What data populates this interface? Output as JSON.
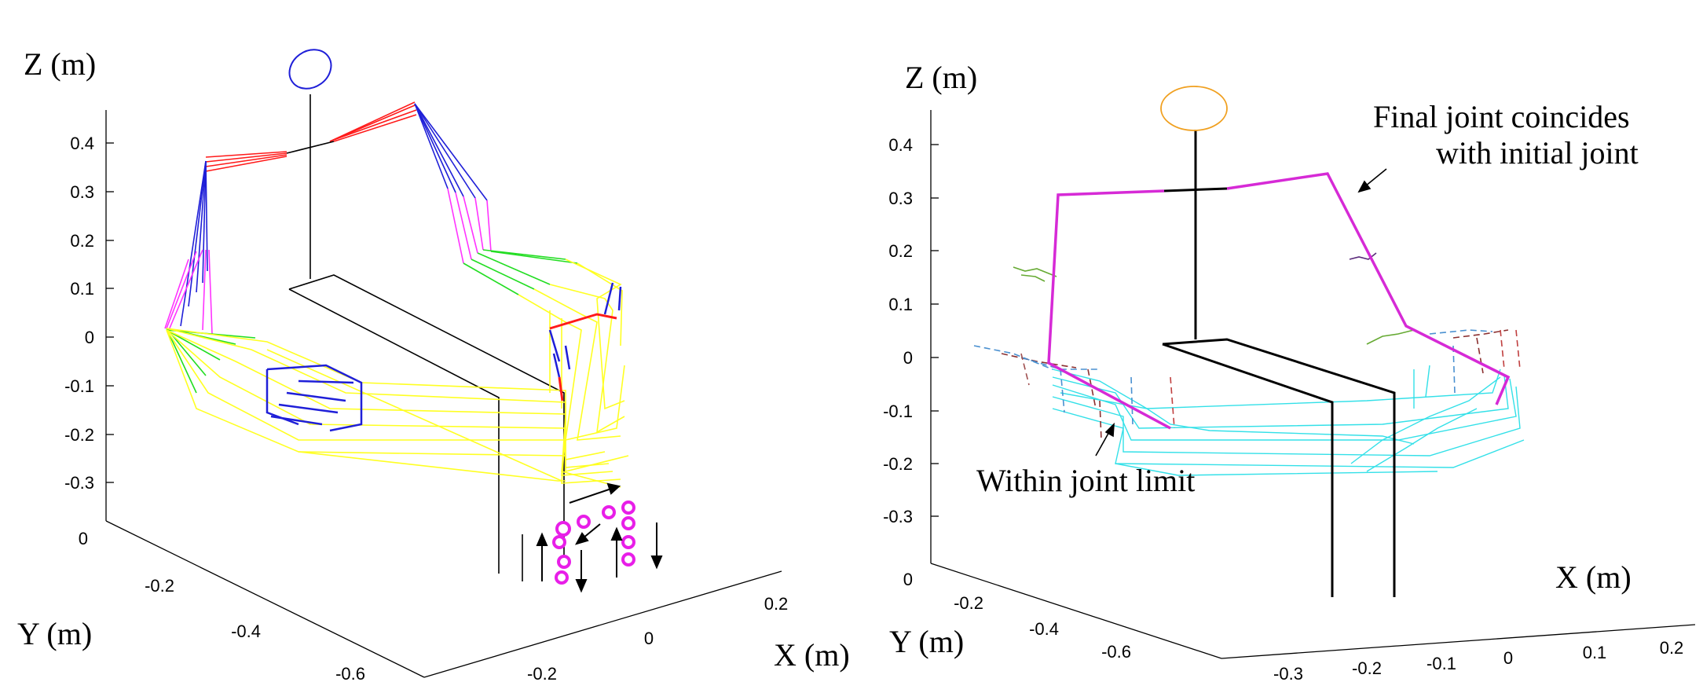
{
  "left_panel": {
    "z_label": "Z (m)",
    "y_label": "Y (m)",
    "x_label": "X (m)",
    "z_ticks": [
      "0.4",
      "0.3",
      "0.2",
      "0.1",
      "0",
      "-0.1",
      "-0.2",
      "-0.3"
    ],
    "y_ticks": [
      "0",
      "-0.2",
      "-0.4",
      "-0.6"
    ],
    "x_ticks": [
      "-0.2",
      "0",
      "0.2"
    ],
    "colors": {
      "head": "#1f1fd8",
      "shoulder": "#ff1a1a",
      "upper_arm": "#1f1fd8",
      "forearm": "#ff33ff",
      "wrist": "#22dd22",
      "hand": "#ffff22",
      "trajectory": "#e81ee8"
    }
  },
  "right_panel": {
    "z_label": "Z (m)",
    "y_label": "Y (m)",
    "x_label": "X (m)",
    "z_ticks": [
      "0.4",
      "0.3",
      "0.2",
      "0.1",
      "0",
      "-0.1",
      "-0.2",
      "-0.3"
    ],
    "y_ticks": [
      "0",
      "-0.2",
      "-0.4",
      "-0.6"
    ],
    "x_ticks": [
      "-0.3",
      "-0.2",
      "-0.1",
      "0",
      "0.1",
      "0.2"
    ],
    "annotation_final_line1": "Final joint coincides",
    "annotation_final_line2": "with initial joint",
    "annotation_limit": "Within joint limit",
    "colors": {
      "head": "#f0a020",
      "arm": "#d62ad6",
      "body": "#000000",
      "trace": "#33e0e8"
    }
  }
}
